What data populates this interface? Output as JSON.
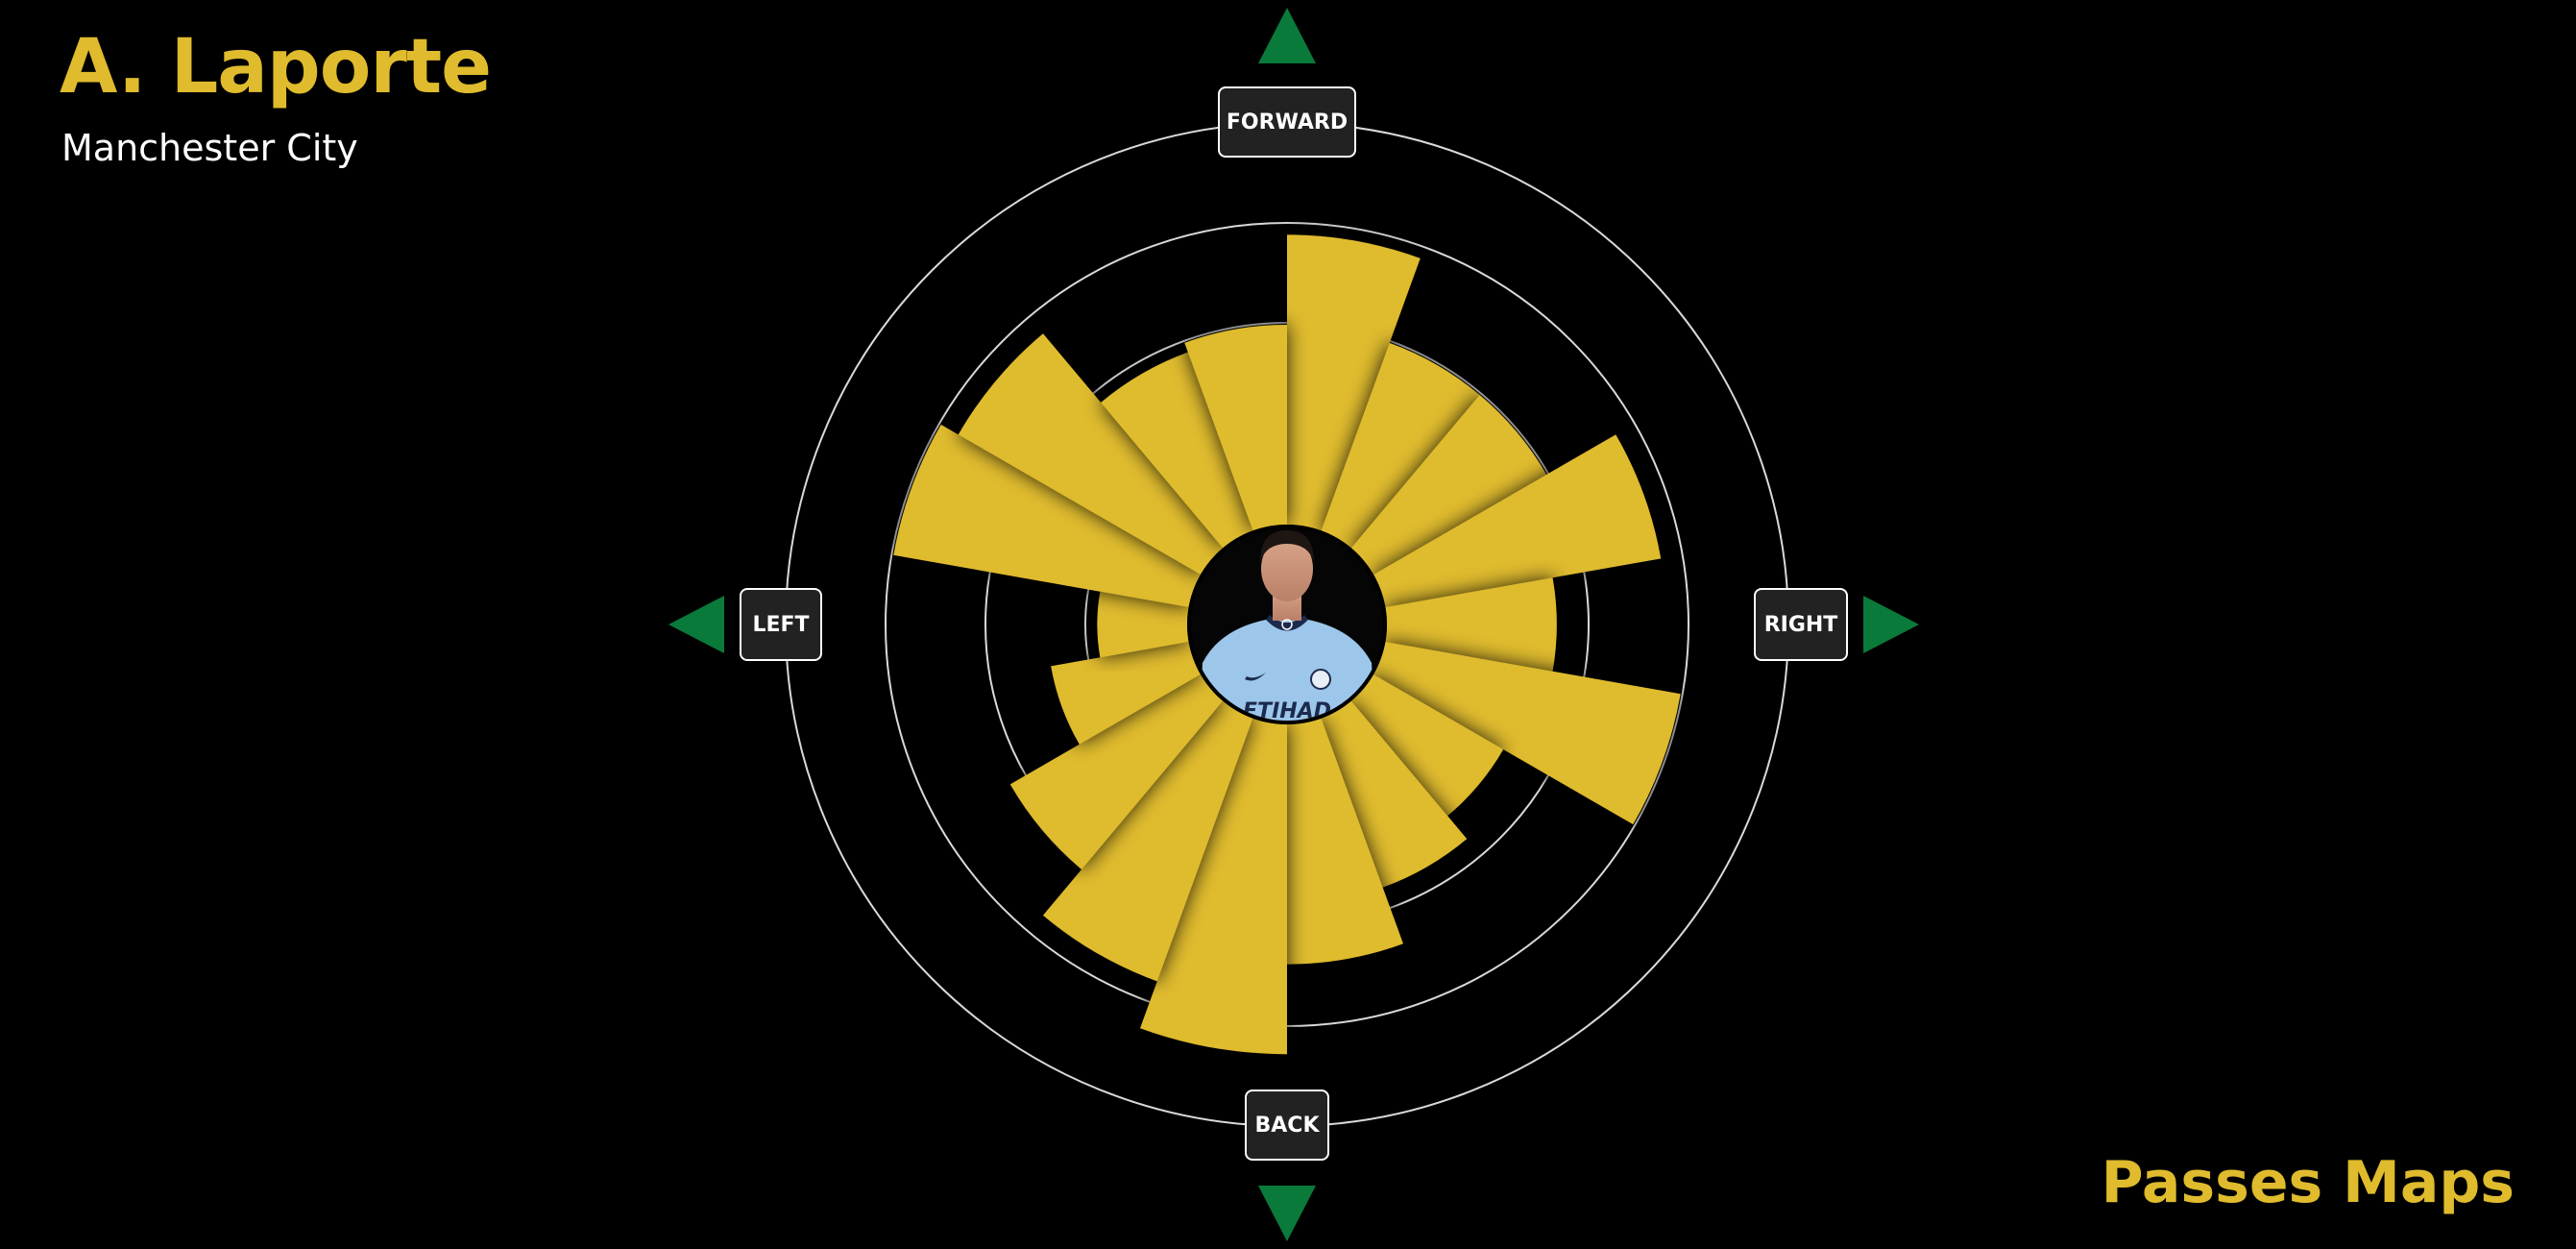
{
  "header": {
    "player_name": "A. Laporte",
    "team_name": "Manchester City"
  },
  "footer": {
    "title": "Passes Maps"
  },
  "directions": {
    "forward": "FORWARD",
    "back": "BACK",
    "left": "LEFT",
    "right": "RIGHT"
  },
  "colors": {
    "background": "#000000",
    "bar": "#dfbb2d",
    "ring": "#ffffff",
    "arrow": "#0a7a3a",
    "label_bg": "#222222"
  },
  "photo": {
    "description_icon": "player-photo",
    "jersey_color": "#9cc7ea",
    "sponsor_text": "ETIHAD"
  },
  "chart_data": {
    "type": "polar-bar",
    "title": "",
    "directions": [
      "forward",
      "right",
      "back",
      "left"
    ],
    "sector_width_deg": 20,
    "rlim": [
      0,
      4
    ],
    "ring_levels": [
      1,
      2,
      3,
      4
    ],
    "grid": true,
    "angles_deg": [
      10,
      30,
      50,
      70,
      90,
      110,
      130,
      150,
      170,
      190,
      210,
      230,
      250,
      270,
      290,
      310,
      330,
      350
    ],
    "values": [
      2.9,
      2.0,
      2.0,
      2.8,
      1.7,
      3.0,
      1.5,
      1.8,
      2.4,
      3.3,
      2.8,
      2.2,
      1.4,
      0.9,
      3.0,
      2.8,
      1.9,
      2.0
    ]
  }
}
